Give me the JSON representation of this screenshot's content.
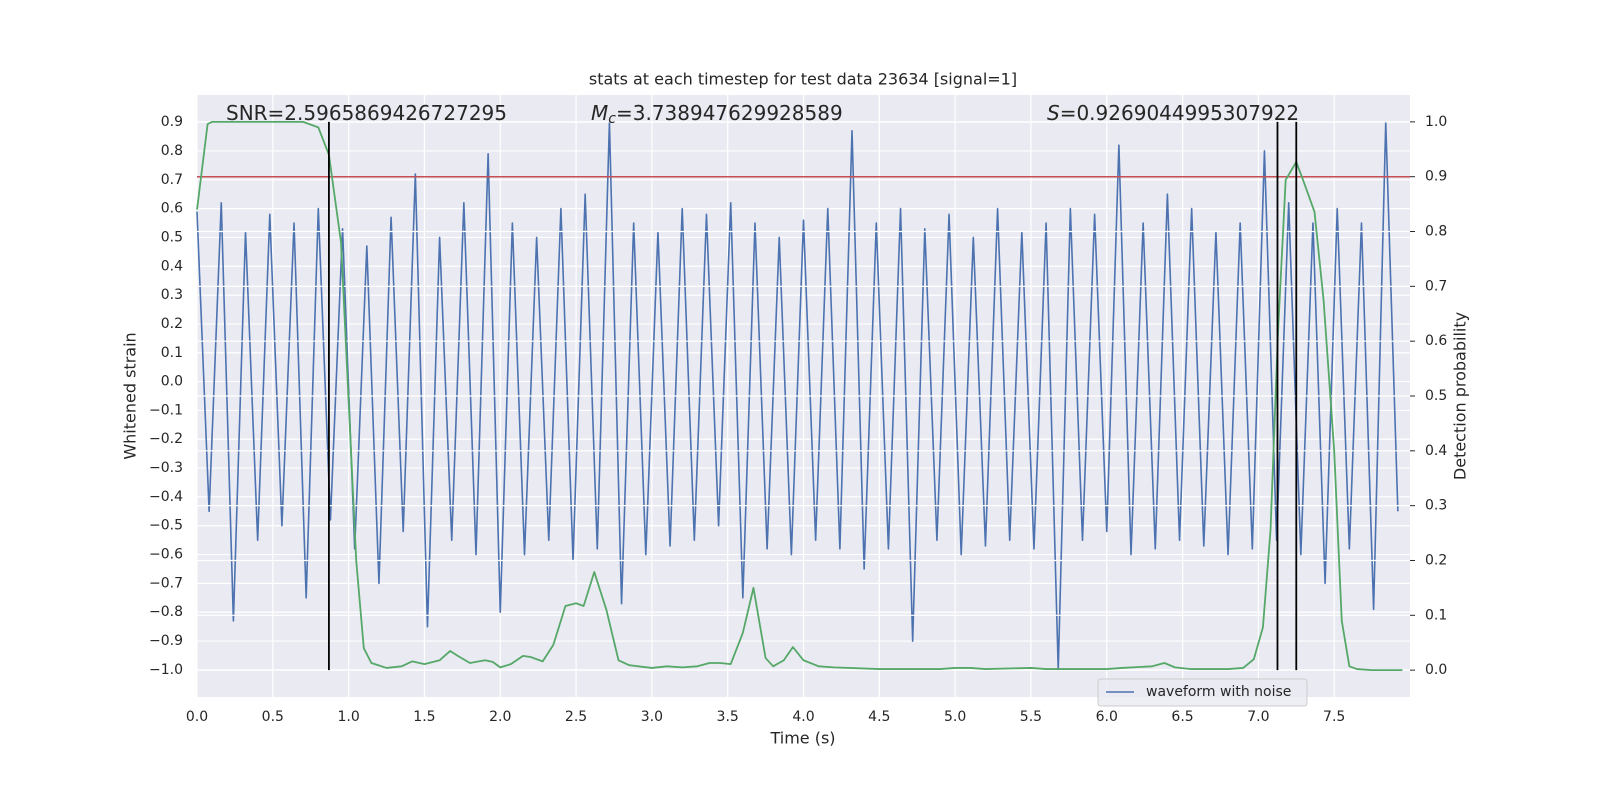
{
  "chart_data": {
    "type": "line",
    "title": "stats at each timestep for test data 23634 [signal=1]",
    "xlabel": "Time (s)",
    "ylabel": "Whitened strain",
    "y2label": "Detection probability",
    "annotations": [
      {
        "text": "SNR=2.5965869426727295"
      },
      {
        "symbol": "M",
        "subscript": "c",
        "text": "=3.738947629928589"
      },
      {
        "symbol": "S",
        "text": "=0.9269044995307922"
      }
    ],
    "xlim": [
      0,
      8
    ],
    "ylim": [
      -1.094,
      0.994
    ],
    "y2lim": [
      -0.049,
      1.049
    ],
    "xticks": [
      {
        "value": 0,
        "label": "0.0"
      },
      0.5,
      {
        "value": 1,
        "label": "1.0"
      },
      1.5,
      {
        "value": 2,
        "label": "2.0"
      },
      2.5,
      {
        "value": 3,
        "label": "3.0"
      },
      3.5,
      {
        "value": 4,
        "label": "4.0"
      },
      4.5,
      {
        "value": 5,
        "label": "5.0"
      },
      5.5,
      {
        "value": 6,
        "label": "6.0"
      },
      6.5,
      {
        "value": 7,
        "label": "7.0"
      },
      7.5
    ],
    "yticks": [
      {
        "value": -1,
        "label": "−1.0"
      },
      {
        "value": -0.9,
        "label": "−0.9"
      },
      {
        "value": -0.8,
        "label": "−0.8"
      },
      {
        "value": -0.7,
        "label": "−0.7"
      },
      {
        "value": -0.6,
        "label": "−0.6"
      },
      {
        "value": -0.5,
        "label": "−0.5"
      },
      {
        "value": -0.4,
        "label": "−0.4"
      },
      {
        "value": -0.3,
        "label": "−0.3"
      },
      {
        "value": -0.2,
        "label": "−0.2"
      },
      {
        "value": -0.1,
        "label": "−0.1"
      },
      {
        "value": 0,
        "label": "0.0"
      },
      0.1,
      0.2,
      0.3,
      0.4,
      0.5,
      0.6,
      0.7,
      0.8,
      0.9
    ],
    "y2ticks": [
      {
        "value": 0,
        "label": "0.0"
      },
      0.1,
      0.2,
      0.3,
      0.4,
      0.5,
      0.6,
      0.7,
      0.8,
      0.9,
      {
        "value": 1,
        "label": "1.0"
      }
    ],
    "grid": true,
    "legend": "lower right",
    "series": [
      {
        "name": "waveform with noise",
        "color": "#4c72b0",
        "x": [
          0,
          0.08,
          0.16,
          0.24,
          0.32,
          0.4,
          0.48,
          0.56,
          0.64,
          0.72,
          0.8,
          0.88,
          0.96,
          1.04,
          1.12,
          1.2,
          1.28,
          1.36,
          1.44,
          1.52,
          1.6,
          1.68,
          1.76,
          1.84,
          1.92,
          2,
          2.08,
          2.16,
          2.24,
          2.32,
          2.4,
          2.48,
          2.56,
          2.64,
          2.72,
          2.8,
          2.88,
          2.96,
          3.04,
          3.12,
          3.2,
          3.28,
          3.36,
          3.44,
          3.52,
          3.6,
          3.68,
          3.76,
          3.84,
          3.92,
          4,
          4.08,
          4.16,
          4.24,
          4.32,
          4.4,
          4.48,
          4.56,
          4.64,
          4.72,
          4.8,
          4.88,
          4.96,
          5.04,
          5.12,
          5.2,
          5.28,
          5.36,
          5.44,
          5.52,
          5.6,
          5.68,
          5.76,
          5.84,
          5.92,
          6,
          6.08,
          6.16,
          6.24,
          6.32,
          6.4,
          6.48,
          6.56,
          6.64,
          6.72,
          6.8,
          6.88,
          6.96,
          7.04,
          7.12,
          7.2,
          7.28,
          7.36,
          7.44,
          7.52,
          7.6,
          7.68,
          7.76,
          7.84,
          7.92
        ],
        "values": [
          0.59,
          -0.45,
          0.62,
          -0.83,
          0.52,
          -0.55,
          0.58,
          -0.5,
          0.55,
          -0.75,
          0.6,
          -0.48,
          0.53,
          -0.58,
          0.47,
          -0.7,
          0.57,
          -0.52,
          0.72,
          -0.85,
          0.5,
          -0.55,
          0.62,
          -0.6,
          0.79,
          -0.8,
          0.55,
          -0.6,
          0.5,
          -0.55,
          0.6,
          -0.62,
          0.65,
          -0.58,
          0.9,
          -0.77,
          0.55,
          -0.6,
          0.52,
          -0.57,
          0.6,
          -0.55,
          0.58,
          -0.5,
          0.62,
          -0.75,
          0.55,
          -0.58,
          0.5,
          -0.6,
          0.56,
          -0.55,
          0.6,
          -0.58,
          0.87,
          -0.65,
          0.55,
          -0.58,
          0.6,
          -0.9,
          0.53,
          -0.55,
          0.58,
          -0.6,
          0.5,
          -0.57,
          0.6,
          -0.55,
          0.52,
          -0.58,
          0.55,
          -1.0,
          0.6,
          -0.55,
          0.58,
          -0.52,
          0.82,
          -0.6,
          0.55,
          -0.58,
          0.65,
          -0.55,
          0.6,
          -0.57,
          0.52,
          -0.6,
          0.55,
          -0.58,
          0.8,
          -0.55,
          0.62,
          -0.6,
          0.55,
          -0.7,
          0.6,
          -0.58,
          0.55,
          -0.79,
          0.9,
          -0.45
        ]
      }
    ],
    "probability": {
      "axis": "y2",
      "color": "#55a868",
      "x": [
        0,
        0.07,
        0.1,
        0.7,
        0.8,
        0.87,
        0.95,
        1.0,
        1.05,
        1.1,
        1.15,
        1.25,
        1.35,
        1.42,
        1.5,
        1.6,
        1.67,
        1.72,
        1.8,
        1.9,
        1.95,
        2.0,
        2.07,
        2.15,
        2.2,
        2.28,
        2.35,
        2.43,
        2.5,
        2.55,
        2.62,
        2.7,
        2.78,
        2.85,
        3.0,
        3.1,
        3.2,
        3.3,
        3.38,
        3.45,
        3.52,
        3.6,
        3.67,
        3.75,
        3.8,
        3.87,
        3.93,
        4.0,
        4.1,
        4.2,
        4.5,
        4.9,
        5.0,
        5.1,
        5.2,
        5.5,
        5.6,
        6.0,
        6.1,
        6.3,
        6.38,
        6.45,
        6.55,
        6.8,
        6.9,
        6.97,
        7.03,
        7.08,
        7.13,
        7.18,
        7.25,
        7.3,
        7.37,
        7.43,
        7.5,
        7.55,
        7.6,
        7.65,
        7.75,
        7.95
      ],
      "values": [
        0.84,
        0.996,
        1.0,
        1.0,
        0.99,
        0.94,
        0.78,
        0.49,
        0.2,
        0.04,
        0.013,
        0.004,
        0.007,
        0.016,
        0.011,
        0.018,
        0.035,
        0.026,
        0.013,
        0.018,
        0.015,
        0.005,
        0.011,
        0.026,
        0.024,
        0.016,
        0.046,
        0.117,
        0.122,
        0.117,
        0.179,
        0.11,
        0.018,
        0.009,
        0.004,
        0.007,
        0.005,
        0.007,
        0.013,
        0.013,
        0.011,
        0.068,
        0.15,
        0.022,
        0.007,
        0.018,
        0.042,
        0.018,
        0.007,
        0.005,
        0.002,
        0.002,
        0.004,
        0.004,
        0.002,
        0.004,
        0.002,
        0.002,
        0.004,
        0.007,
        0.013,
        0.005,
        0.002,
        0.002,
        0.004,
        0.02,
        0.078,
        0.255,
        0.62,
        0.894,
        0.927,
        0.89,
        0.836,
        0.675,
        0.4,
        0.09,
        0.007,
        0.002,
        0.0,
        0.0
      ]
    },
    "threshold": {
      "axis": "y2",
      "value": 0.9,
      "color": "#c44e52"
    },
    "vlines": {
      "axis": "y2",
      "color": "#000000",
      "x": [
        0.87,
        7.126,
        7.25
      ],
      "ymin": 0,
      "ymax": 1
    }
  }
}
